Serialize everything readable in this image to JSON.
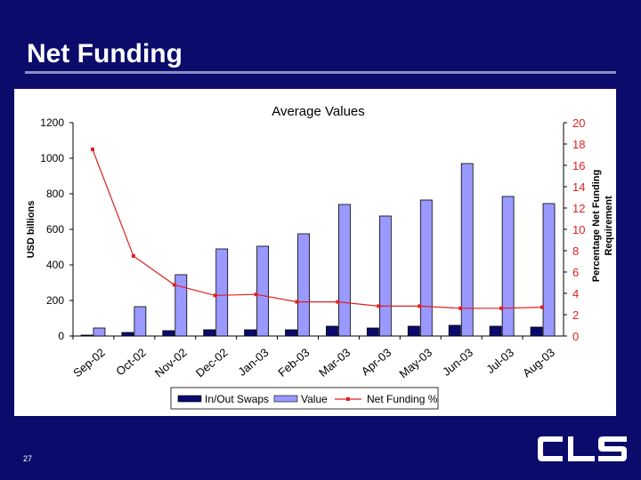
{
  "slide": {
    "title": "Net Funding",
    "page_number": "27",
    "logo_text": "CLS"
  },
  "colors": {
    "background": "#0b0b6b",
    "bar_swaps": "#0a0a6e",
    "bar_value": "#9999ff",
    "line": "#e02020",
    "right_axis_text": "#e02020"
  },
  "chart_data": {
    "type": "bar",
    "title": "Average Values",
    "categories": [
      "Sep-02",
      "Oct-02",
      "Nov-02",
      "Dec-02",
      "Jan-03",
      "Feb-03",
      "Mar-03",
      "Apr-03",
      "May-03",
      "Jun-03",
      "Jul-03",
      "Aug-03"
    ],
    "series": [
      {
        "name": "In/Out Swaps",
        "type": "bar",
        "axis": "left",
        "values": [
          5,
          20,
          30,
          35,
          35,
          35,
          55,
          45,
          55,
          60,
          55,
          50
        ]
      },
      {
        "name": "Value",
        "type": "bar",
        "axis": "left",
        "values": [
          45,
          165,
          345,
          490,
          505,
          575,
          740,
          675,
          765,
          970,
          785,
          745
        ]
      },
      {
        "name": "Net Funding %",
        "type": "line",
        "axis": "right",
        "values": [
          17.5,
          7.5,
          4.8,
          3.8,
          3.9,
          3.2,
          3.2,
          2.8,
          2.8,
          2.6,
          2.6,
          2.7
        ]
      }
    ],
    "ylabel": "USD billions",
    "ylim": [
      0,
      1200
    ],
    "yticks": [
      "0",
      "200",
      "400",
      "600",
      "800",
      "1000",
      "1200"
    ],
    "y2label_lines": [
      "Percentage Net Funding",
      "Requirement"
    ],
    "y2lim": [
      0,
      20
    ],
    "y2ticks": [
      "0",
      "2",
      "4",
      "6",
      "8",
      "10",
      "12",
      "14",
      "16",
      "18",
      "20"
    ],
    "legend_position": "bottom"
  }
}
